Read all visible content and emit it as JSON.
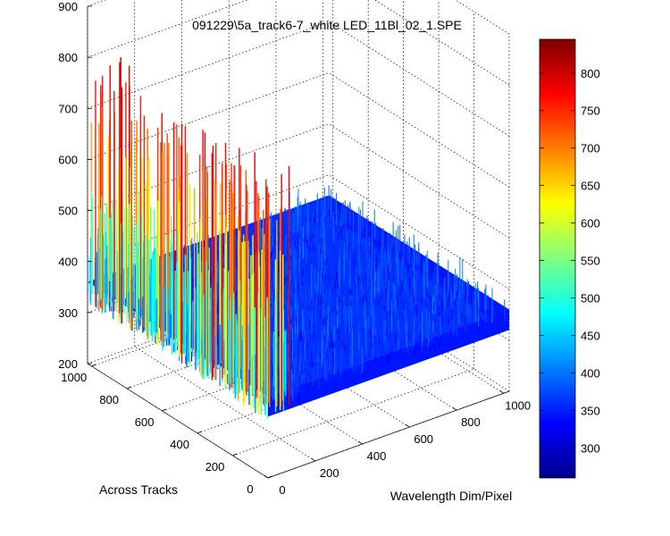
{
  "chart_data": {
    "type": "surface",
    "title": "091229\\5a_track6-7_white LED_11Bl_02_1.SPE",
    "xlabel": "Wavelength Dim/Pixel",
    "ylabel": "Across Tracks",
    "zlabel": "",
    "xlim": [
      0,
      1024
    ],
    "ylim": [
      0,
      1024
    ],
    "zlim": [
      200,
      900
    ],
    "x_ticks": [
      "0",
      "200",
      "400",
      "600",
      "800",
      "1000"
    ],
    "y_ticks": [
      "0",
      "200",
      "400",
      "600",
      "800",
      "1000"
    ],
    "z_ticks": [
      "200",
      "300",
      "400",
      "500",
      "600",
      "700",
      "800",
      "900"
    ],
    "grid": true,
    "colormap": "jet",
    "colorbar": {
      "range": [
        260,
        845
      ],
      "ticks": [
        "300",
        "350",
        "400",
        "450",
        "500",
        "550",
        "600",
        "650",
        "700",
        "750",
        "800"
      ]
    },
    "surface_summary": {
      "baseline_counts": 360,
      "noise_range": [
        320,
        420
      ],
      "ridge_near_x0_peak_counts": [
        600,
        790
      ]
    }
  }
}
